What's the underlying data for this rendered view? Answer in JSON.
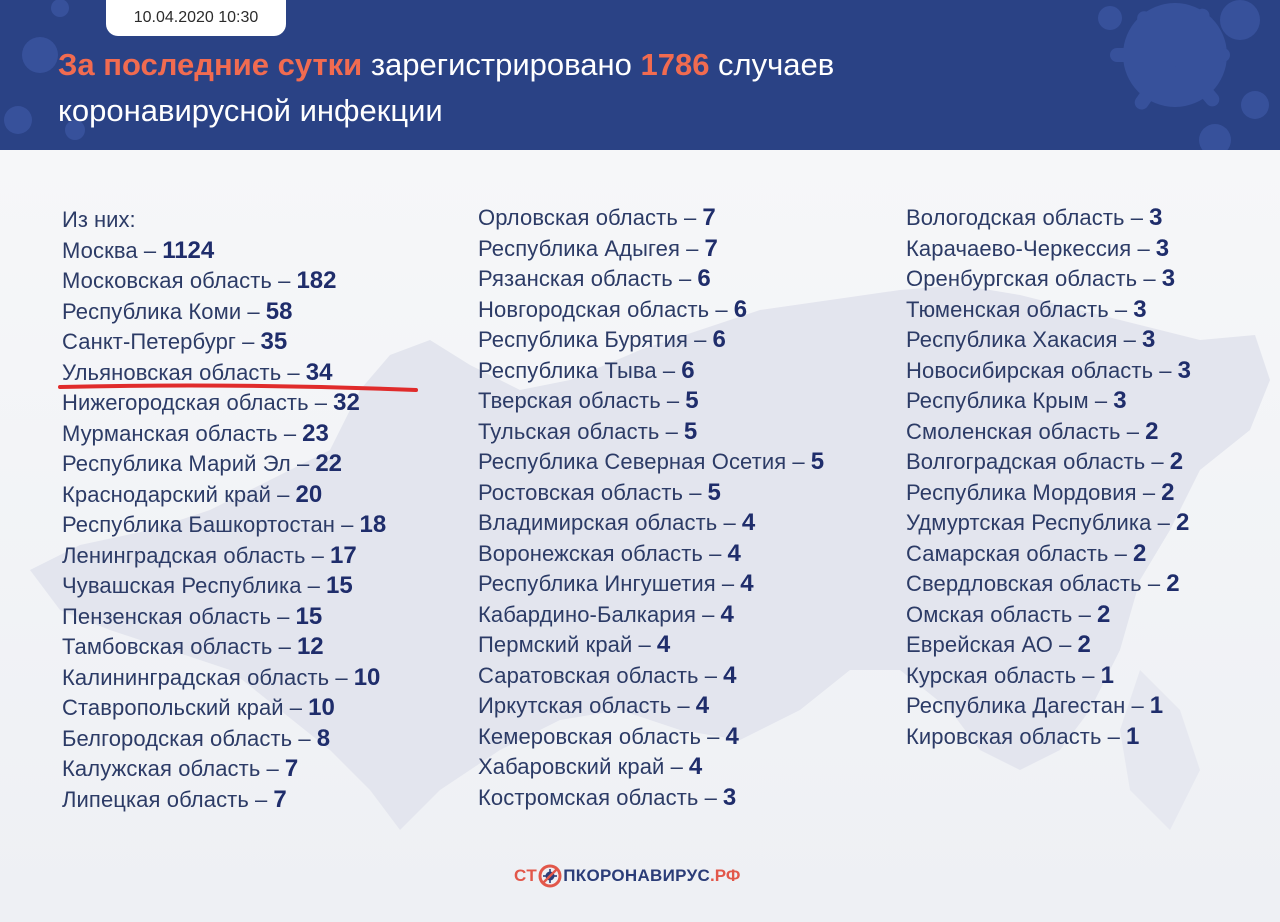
{
  "header": {
    "date": "10.04.2020 10:30",
    "headline_pre": "За последние сутки",
    "headline_mid": " зарегистрировано ",
    "headline_count": "1786",
    "headline_post1": " случаев",
    "headline_post2": "коронавирусной инфекции"
  },
  "intro": "Из них:",
  "colors": {
    "header_bg": "#2a4285",
    "accent": "#f16b50",
    "value": "#1f2d6b",
    "underline": "#e02b2b"
  },
  "columns": [
    [
      {
        "name": "Москва",
        "value": "1124"
      },
      {
        "name": "Московская область",
        "value": "182"
      },
      {
        "name": "Республика Коми",
        "value": "58"
      },
      {
        "name": "Санкт-Петербург",
        "value": "35"
      },
      {
        "name": "Ульяновская область",
        "value": "34"
      },
      {
        "name": "Нижегородская область",
        "value": "32"
      },
      {
        "name": "Мурманская область",
        "value": "23"
      },
      {
        "name": "Республика Марий Эл",
        "value": "22"
      },
      {
        "name": "Краснодарский край",
        "value": "20"
      },
      {
        "name": "Республика Башкортостан",
        "value": "18"
      },
      {
        "name": "Ленинградская область",
        "value": "17"
      },
      {
        "name": "Чувашская Республика",
        "value": "15"
      },
      {
        "name": "Пензенская область",
        "value": "15"
      },
      {
        "name": "Тамбовская область",
        "value": "12"
      },
      {
        "name": "Калининградская область",
        "value": "10"
      },
      {
        "name": "Ставропольский край",
        "value": "10"
      },
      {
        "name": "Белгородская область",
        "value": "8"
      },
      {
        "name": "Калужская область",
        "value": "7"
      },
      {
        "name": "Липецкая область",
        "value": "7"
      }
    ],
    [
      {
        "name": "Орловская область",
        "value": "7"
      },
      {
        "name": "Республика Адыгея",
        "value": "7"
      },
      {
        "name": "Рязанская область",
        "value": "6"
      },
      {
        "name": "Новгородская область",
        "value": "6"
      },
      {
        "name": "Республика Бурятия",
        "value": "6"
      },
      {
        "name": "Республика Тыва",
        "value": "6"
      },
      {
        "name": "Тверская область",
        "value": "5"
      },
      {
        "name": "Тульская область",
        "value": "5"
      },
      {
        "name": "Республика Северная Осетия",
        "value": "5"
      },
      {
        "name": "Ростовская область",
        "value": "5"
      },
      {
        "name": "Владимирская область",
        "value": "4"
      },
      {
        "name": "Воронежская область",
        "value": "4"
      },
      {
        "name": "Республика Ингушетия",
        "value": "4"
      },
      {
        "name": "Кабардино-Балкария",
        "value": "4"
      },
      {
        "name": "Пермский край",
        "value": "4"
      },
      {
        "name": "Саратовская область",
        "value": "4"
      },
      {
        "name": "Иркутская область",
        "value": "4"
      },
      {
        "name": "Кемеровская область",
        "value": "4"
      },
      {
        "name": "Хабаровский край",
        "value": "4"
      },
      {
        "name": "Костромская область",
        "value": "3"
      }
    ],
    [
      {
        "name": "Вологодская область",
        "value": "3"
      },
      {
        "name": "Карачаево-Черкессия",
        "value": "3"
      },
      {
        "name": "Оренбургская область",
        "value": "3"
      },
      {
        "name": "Тюменская область",
        "value": "3"
      },
      {
        "name": "Республика Хакасия",
        "value": "3"
      },
      {
        "name": "Новосибирская область",
        "value": "3"
      },
      {
        "name": "Республика Крым",
        "value": "3"
      },
      {
        "name": "Смоленская область",
        "value": "2"
      },
      {
        "name": "Волгоградская область",
        "value": "2"
      },
      {
        "name": "Республика Мордовия",
        "value": "2"
      },
      {
        "name": "Удмуртская Республика",
        "value": "2"
      },
      {
        "name": "Самарская область",
        "value": "2"
      },
      {
        "name": "Свердловская область",
        "value": "2"
      },
      {
        "name": "Омская область",
        "value": "2"
      },
      {
        "name": "Еврейская АО",
        "value": "2"
      },
      {
        "name": "Курская область",
        "value": "1"
      },
      {
        "name": "Республика Дагестан",
        "value": "1"
      },
      {
        "name": "Кировская область",
        "value": "1"
      }
    ]
  ],
  "separator": " – ",
  "footer": {
    "logo_part1": "СТ",
    "logo_part2": "ПКОРОНАВИРУС",
    "logo_part3": ".РФ",
    "logo_icon": "virus-icon"
  }
}
